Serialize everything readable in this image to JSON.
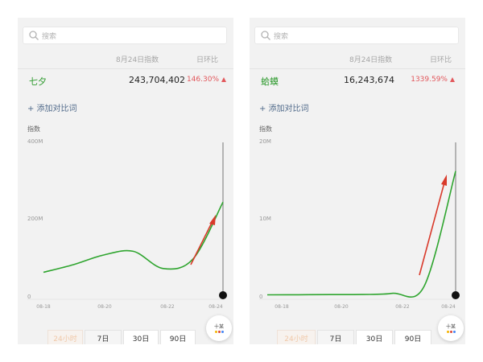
{
  "colors": {
    "line": "#2fa52f",
    "arrow": "#d93a2b",
    "keyword": "#2d9a2d",
    "change": "#e2575c"
  },
  "panels": [
    {
      "search_placeholder": "搜索",
      "header_date": "8月24日指数",
      "header_change": "日环比",
      "keyword": "七夕",
      "value": "243,704,402",
      "change": "146.30%",
      "add_term": "+ 添加对比词",
      "tabs": [
        "24小时",
        "7日",
        "30日",
        "90日"
      ],
      "fab_label": "十某",
      "chart_data": {
        "type": "line",
        "ylabel": "指数",
        "y_ticks": [
          "400M",
          "200M",
          "0"
        ],
        "ylim": [
          0,
          400000000
        ],
        "x_ticks": [
          "08-18",
          "08-20",
          "08-22",
          "08-24"
        ],
        "x": [
          "08-18",
          "08-19",
          "08-20",
          "08-21",
          "08-22",
          "08-23",
          "08-24"
        ],
        "series": [
          {
            "values": [
              60000000,
              80000000,
              105000000,
              115000000,
              70000000,
              95000000,
              243704402
            ]
          }
        ]
      }
    },
    {
      "search_placeholder": "搜索",
      "header_date": "8月24日指数",
      "header_change": "日环比",
      "keyword": "蛤蟆",
      "value": "16,243,674",
      "change": "1339.59%",
      "add_term": "+ 添加对比词",
      "tabs": [
        "24小时",
        "7日",
        "30日",
        "90日"
      ],
      "fab_label": "十某",
      "chart_data": {
        "type": "line",
        "ylabel": "指数",
        "y_ticks": [
          "20M",
          "10M",
          "0"
        ],
        "ylim": [
          0,
          20000000
        ],
        "x_ticks": [
          "08-18",
          "08-20",
          "08-22",
          "08-24"
        ],
        "x": [
          "08-18",
          "08-19",
          "08-20",
          "08-21",
          "08-22",
          "08-23",
          "08-24"
        ],
        "series": [
          {
            "values": [
              50000,
              60000,
              80000,
              100000,
              250000,
              1200000,
              16243674
            ]
          }
        ]
      }
    }
  ]
}
